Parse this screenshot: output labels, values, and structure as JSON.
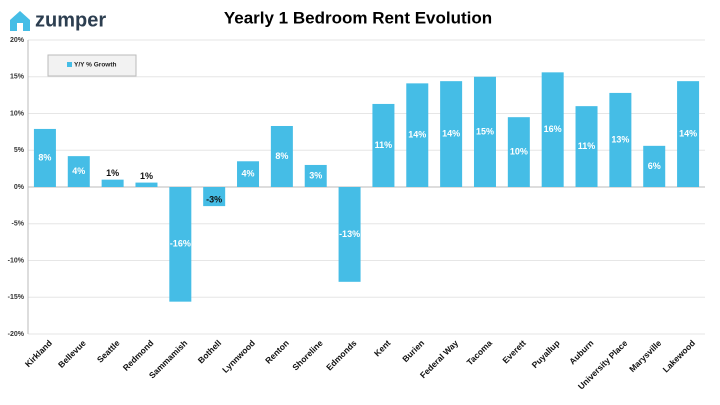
{
  "logo": "zumper",
  "chart_data": {
    "type": "bar",
    "title": "Yearly 1 Bedroom Rent Evolution",
    "categories": [
      "Kirkland",
      "Bellevue",
      "Seattle",
      "Redmond",
      "Sammamish",
      "Bothell",
      "Lynnwood",
      "Renton",
      "Shoreline",
      "Edmonds",
      "Kent",
      "Burien",
      "Federal Way",
      "Tacoma",
      "Everett",
      "Puyallup",
      "Auburn",
      "University Place",
      "Marysville",
      "Lakewood"
    ],
    "series": [
      {
        "name": "Y/Y % Growth",
        "color": "#45bde6",
        "values": [
          7.9,
          4.2,
          1.0,
          0.6,
          -15.6,
          -2.6,
          3.5,
          8.3,
          3.0,
          -12.9,
          11.3,
          14.1,
          14.4,
          15.0,
          9.5,
          15.6,
          11.0,
          12.8,
          5.6,
          14.4
        ],
        "value_labels": [
          "8%",
          "4%",
          "1%",
          "1%",
          "-16%",
          "-3%",
          "4%",
          "8%",
          "3%",
          "-13%",
          "11%",
          "14%",
          "14%",
          "15%",
          "10%",
          "16%",
          "11%",
          "13%",
          "6%",
          "14%"
        ]
      }
    ],
    "ylim": [
      -20,
      20
    ],
    "yticks": [
      {
        "value": -20,
        "label": "-20%"
      },
      {
        "value": -15,
        "label": "-15%"
      },
      {
        "value": -10,
        "label": "-10%"
      },
      {
        "value": -5,
        "label": "-5%"
      },
      {
        "value": 0,
        "label": "0%"
      },
      {
        "value": 5,
        "label": "5%"
      },
      {
        "value": 10,
        "label": "10%"
      },
      {
        "value": 15,
        "label": "15%"
      },
      {
        "value": 20,
        "label": "20%"
      }
    ],
    "grid": true,
    "legend": "upper left"
  }
}
